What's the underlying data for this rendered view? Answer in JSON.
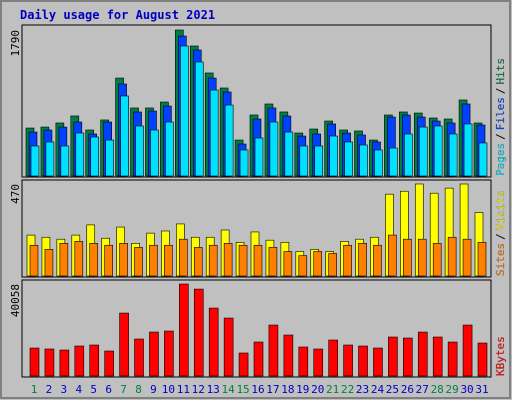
{
  "chart_data": [
    {
      "type": "bar",
      "title": "Daily usage for August 2021",
      "legend_separator": "/",
      "ylim": [
        0,
        1790
      ],
      "yticks": [
        1790
      ],
      "series": [
        {
          "name": "Hits",
          "color": "#008040",
          "values": [
            588,
            600,
            650,
            736,
            564,
            687,
            1201,
            834,
            834,
            907,
            1790,
            1594,
            1263,
            1079,
            441,
            748,
            883,
            785,
            527,
            576,
            674,
            564,
            552,
            441,
            748,
            785,
            772,
            711,
            699,
            932,
            650
          ]
        },
        {
          "name": "Files",
          "color": "#0040ff",
          "values": [
            539,
            564,
            600,
            662,
            515,
            662,
            1128,
            785,
            797,
            858,
            1716,
            1545,
            1201,
            1030,
            392,
            699,
            834,
            736,
            490,
            515,
            638,
            527,
            503,
            417,
            723,
            748,
            723,
            674,
            650,
            883,
            625
          ]
        },
        {
          "name": "Pages",
          "color": "#00e0ff",
          "values": [
            368,
            417,
            368,
            527,
            478,
            441,
            981,
            613,
            564,
            662,
            1594,
            1398,
            1054,
            870,
            319,
            466,
            662,
            539,
            368,
            368,
            490,
            417,
            380,
            319,
            343,
            515,
            600,
            613,
            515,
            638,
            405
          ]
        }
      ]
    },
    {
      "type": "bar",
      "legend_separator": "/",
      "ylim": [
        0,
        470
      ],
      "yticks": [
        470
      ],
      "series": [
        {
          "name": "Visits",
          "color": "#ffff00",
          "values": [
            209,
            198,
            188,
            209,
            261,
            193,
            250,
            167,
            219,
            230,
            266,
            198,
            198,
            235,
            172,
            225,
            183,
            172,
            125,
            136,
            125,
            177,
            188,
            198,
            418,
            433,
            470,
            423,
            449,
            470,
            324
          ]
        },
        {
          "name": "Sites",
          "color": "#ff8000",
          "values": [
            157,
            136,
            167,
            177,
            167,
            157,
            167,
            146,
            157,
            157,
            188,
            146,
            157,
            167,
            157,
            157,
            146,
            125,
            104,
            125,
            115,
            157,
            167,
            157,
            209,
            188,
            188,
            167,
            198,
            188,
            172
          ]
        }
      ]
    },
    {
      "type": "bar",
      "ylim": [
        0,
        40058
      ],
      "yticks": [
        40058
      ],
      "categories": [
        "1",
        "2",
        "3",
        "4",
        "5",
        "6",
        "7",
        "8",
        "9",
        "10",
        "11",
        "12",
        "13",
        "14",
        "15",
        "16",
        "17",
        "18",
        "19",
        "20",
        "21",
        "22",
        "23",
        "24",
        "25",
        "26",
        "27",
        "28",
        "29",
        "30",
        "31"
      ],
      "category_colors": [
        "#008040",
        "#0000c0",
        "#0000c0",
        "#0000c0",
        "#0000c0",
        "#0000c0",
        "#008040",
        "#008040",
        "#0000c0",
        "#0000c0",
        "#0000c0",
        "#0000c0",
        "#0000c0",
        "#008040",
        "#008040",
        "#0000c0",
        "#0000c0",
        "#0000c0",
        "#0000c0",
        "#0000c0",
        "#008040",
        "#008040",
        "#0000c0",
        "#0000c0",
        "#0000c0",
        "#0000c0",
        "#0000c0",
        "#008040",
        "#008040",
        "#0000c0",
        "#0000c0"
      ],
      "series": [
        {
          "name": "KBytes",
          "color": "#ff0000",
          "values": [
            12180,
            11750,
            11310,
            13050,
            13490,
            10880,
            27400,
            16100,
            19140,
            19580,
            40058,
            37850,
            29580,
            25230,
            10010,
            14790,
            22190,
            17840,
            12620,
            11750,
            15660,
            13490,
            13050,
            12180,
            16970,
            16530,
            19140,
            16970,
            14790,
            22190,
            14360
          ]
        }
      ]
    }
  ]
}
